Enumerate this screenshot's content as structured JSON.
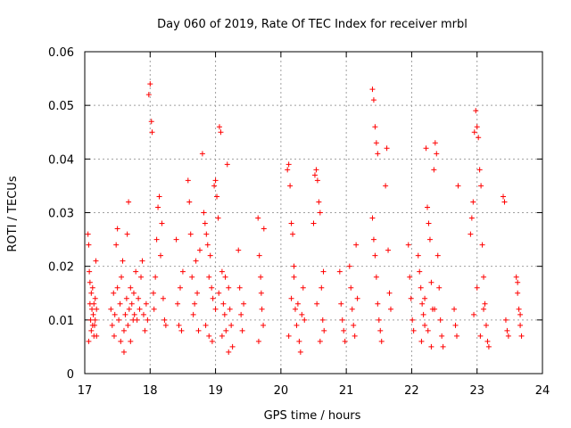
{
  "chart_data": {
    "type": "scatter",
    "title": "Day 060 of 2019, Rate Of TEC Index for receiver mrbl",
    "xlabel": "GPS time / hours",
    "ylabel": "ROTI / TECUs",
    "xlim": [
      17,
      24
    ],
    "ylim": [
      0,
      0.06
    ],
    "x_ticks": [
      17,
      18,
      19,
      20,
      21,
      22,
      23,
      24
    ],
    "x_tick_labels": [
      "17",
      "18",
      "19",
      "20",
      "21",
      "22",
      "23",
      "24"
    ],
    "y_ticks": [
      0,
      0.01,
      0.02,
      0.03,
      0.04,
      0.05,
      0.06
    ],
    "y_tick_labels": [
      "0",
      "0.01",
      "0.02",
      "0.03",
      "0.04",
      "0.05",
      "0.06"
    ],
    "grid": true,
    "marker": "+",
    "color": "#ff0000",
    "series": [
      {
        "name": "ROTI",
        "points": [
          [
            17.05,
            0.026
          ],
          [
            17.06,
            0.024
          ],
          [
            17.07,
            0.019
          ],
          [
            17.08,
            0.013
          ],
          [
            17.09,
            0.01
          ],
          [
            17.1,
            0.008
          ],
          [
            17.11,
            0.012
          ],
          [
            17.12,
            0.016
          ],
          [
            17.13,
            0.011
          ],
          [
            17.14,
            0.007
          ],
          [
            17.15,
            0.009
          ],
          [
            17.16,
            0.014
          ],
          [
            17.17,
            0.021
          ],
          [
            17.18,
            0.012
          ],
          [
            17.06,
            0.006
          ],
          [
            17.08,
            0.017
          ],
          [
            17.1,
            0.015
          ],
          [
            17.12,
            0.009
          ],
          [
            17.14,
            0.013
          ],
          [
            17.16,
            0.01
          ],
          [
            17.18,
            0.007
          ],
          [
            17.4,
            0.012
          ],
          [
            17.42,
            0.009
          ],
          [
            17.44,
            0.015
          ],
          [
            17.46,
            0.011
          ],
          [
            17.48,
            0.024
          ],
          [
            17.5,
            0.027
          ],
          [
            17.52,
            0.01
          ],
          [
            17.54,
            0.013
          ],
          [
            17.56,
            0.018
          ],
          [
            17.58,
            0.021
          ],
          [
            17.6,
            0.008
          ],
          [
            17.62,
            0.011
          ],
          [
            17.64,
            0.014
          ],
          [
            17.66,
            0.009
          ],
          [
            17.68,
            0.012
          ],
          [
            17.7,
            0.016
          ],
          [
            17.72,
            0.013
          ],
          [
            17.74,
            0.01
          ],
          [
            17.76,
            0.011
          ],
          [
            17.78,
            0.019
          ],
          [
            17.45,
            0.007
          ],
          [
            17.5,
            0.016
          ],
          [
            17.55,
            0.006
          ],
          [
            17.6,
            0.004
          ],
          [
            17.65,
            0.026
          ],
          [
            17.67,
            0.032
          ],
          [
            17.7,
            0.006
          ],
          [
            17.75,
            0.015
          ],
          [
            17.8,
            0.01
          ],
          [
            17.82,
            0.014
          ],
          [
            17.84,
            0.012
          ],
          [
            17.86,
            0.018
          ],
          [
            17.88,
            0.021
          ],
          [
            17.9,
            0.011
          ],
          [
            17.92,
            0.008
          ],
          [
            17.94,
            0.013
          ],
          [
            17.96,
            0.01
          ],
          [
            17.98,
            0.052
          ],
          [
            18.0,
            0.054
          ],
          [
            18.02,
            0.047
          ],
          [
            18.03,
            0.045
          ],
          [
            18.05,
            0.015
          ],
          [
            18.06,
            0.012
          ],
          [
            18.08,
            0.018
          ],
          [
            18.1,
            0.025
          ],
          [
            18.12,
            0.031
          ],
          [
            18.14,
            0.033
          ],
          [
            18.16,
            0.022
          ],
          [
            18.18,
            0.028
          ],
          [
            18.2,
            0.014
          ],
          [
            18.22,
            0.01
          ],
          [
            18.24,
            0.009
          ],
          [
            18.4,
            0.025
          ],
          [
            18.42,
            0.013
          ],
          [
            18.44,
            0.009
          ],
          [
            18.46,
            0.016
          ],
          [
            18.48,
            0.008
          ],
          [
            18.5,
            0.019
          ],
          [
            18.58,
            0.036
          ],
          [
            18.6,
            0.032
          ],
          [
            18.62,
            0.026
          ],
          [
            18.64,
            0.018
          ],
          [
            18.66,
            0.011
          ],
          [
            18.68,
            0.013
          ],
          [
            18.7,
            0.021
          ],
          [
            18.72,
            0.015
          ],
          [
            18.74,
            0.008
          ],
          [
            18.76,
            0.023
          ],
          [
            18.8,
            0.041
          ],
          [
            18.82,
            0.03
          ],
          [
            18.84,
            0.028
          ],
          [
            18.86,
            0.026
          ],
          [
            18.88,
            0.024
          ],
          [
            18.9,
            0.018
          ],
          [
            18.92,
            0.022
          ],
          [
            18.94,
            0.016
          ],
          [
            18.96,
            0.014
          ],
          [
            18.98,
            0.035
          ],
          [
            19.0,
            0.036
          ],
          [
            19.02,
            0.033
          ],
          [
            19.04,
            0.029
          ],
          [
            19.06,
            0.046
          ],
          [
            19.08,
            0.045
          ],
          [
            19.1,
            0.019
          ],
          [
            19.12,
            0.013
          ],
          [
            19.14,
            0.011
          ],
          [
            19.16,
            0.008
          ],
          [
            19.18,
            0.039
          ],
          [
            19.2,
            0.016
          ],
          [
            19.22,
            0.012
          ],
          [
            19.24,
            0.009
          ],
          [
            19.26,
            0.005
          ],
          [
            18.85,
            0.009
          ],
          [
            18.9,
            0.007
          ],
          [
            18.95,
            0.006
          ],
          [
            19.0,
            0.012
          ],
          [
            19.05,
            0.015
          ],
          [
            19.1,
            0.007
          ],
          [
            19.15,
            0.018
          ],
          [
            19.2,
            0.004
          ],
          [
            19.35,
            0.023
          ],
          [
            19.37,
            0.016
          ],
          [
            19.39,
            0.011
          ],
          [
            19.41,
            0.008
          ],
          [
            19.43,
            0.013
          ],
          [
            19.65,
            0.029
          ],
          [
            19.67,
            0.022
          ],
          [
            19.69,
            0.018
          ],
          [
            19.71,
            0.012
          ],
          [
            19.73,
            0.009
          ],
          [
            19.66,
            0.006
          ],
          [
            19.7,
            0.015
          ],
          [
            19.74,
            0.027
          ],
          [
            20.1,
            0.038
          ],
          [
            20.12,
            0.039
          ],
          [
            20.14,
            0.035
          ],
          [
            20.16,
            0.028
          ],
          [
            20.18,
            0.026
          ],
          [
            20.2,
            0.018
          ],
          [
            20.22,
            0.012
          ],
          [
            20.24,
            0.009
          ],
          [
            20.26,
            0.013
          ],
          [
            20.28,
            0.006
          ],
          [
            20.3,
            0.004
          ],
          [
            20.32,
            0.011
          ],
          [
            20.34,
            0.016
          ],
          [
            20.36,
            0.01
          ],
          [
            20.12,
            0.007
          ],
          [
            20.16,
            0.014
          ],
          [
            20.2,
            0.02
          ],
          [
            20.5,
            0.028
          ],
          [
            20.52,
            0.037
          ],
          [
            20.54,
            0.038
          ],
          [
            20.56,
            0.036
          ],
          [
            20.58,
            0.032
          ],
          [
            20.6,
            0.03
          ],
          [
            20.62,
            0.016
          ],
          [
            20.64,
            0.01
          ],
          [
            20.66,
            0.008
          ],
          [
            20.55,
            0.013
          ],
          [
            20.6,
            0.006
          ],
          [
            20.65,
            0.019
          ],
          [
            20.9,
            0.019
          ],
          [
            20.92,
            0.013
          ],
          [
            20.94,
            0.01
          ],
          [
            20.96,
            0.008
          ],
          [
            20.98,
            0.006
          ],
          [
            21.05,
            0.02
          ],
          [
            21.07,
            0.016
          ],
          [
            21.09,
            0.012
          ],
          [
            21.11,
            0.009
          ],
          [
            21.13,
            0.007
          ],
          [
            21.15,
            0.024
          ],
          [
            21.17,
            0.014
          ],
          [
            21.4,
            0.053
          ],
          [
            21.42,
            0.051
          ],
          [
            21.44,
            0.046
          ],
          [
            21.46,
            0.043
          ],
          [
            21.48,
            0.041
          ],
          [
            21.4,
            0.029
          ],
          [
            21.42,
            0.025
          ],
          [
            21.44,
            0.022
          ],
          [
            21.46,
            0.018
          ],
          [
            21.48,
            0.013
          ],
          [
            21.5,
            0.01
          ],
          [
            21.52,
            0.008
          ],
          [
            21.54,
            0.006
          ],
          [
            21.6,
            0.035
          ],
          [
            21.62,
            0.042
          ],
          [
            21.64,
            0.023
          ],
          [
            21.66,
            0.015
          ],
          [
            21.68,
            0.012
          ],
          [
            21.95,
            0.024
          ],
          [
            21.97,
            0.018
          ],
          [
            21.99,
            0.014
          ],
          [
            22.01,
            0.01
          ],
          [
            22.03,
            0.008
          ],
          [
            22.1,
            0.022
          ],
          [
            22.12,
            0.019
          ],
          [
            22.14,
            0.016
          ],
          [
            22.16,
            0.013
          ],
          [
            22.18,
            0.011
          ],
          [
            22.2,
            0.009
          ],
          [
            22.22,
            0.042
          ],
          [
            22.24,
            0.031
          ],
          [
            22.26,
            0.028
          ],
          [
            22.28,
            0.025
          ],
          [
            22.3,
            0.017
          ],
          [
            22.32,
            0.012
          ],
          [
            22.34,
            0.038
          ],
          [
            22.36,
            0.043
          ],
          [
            22.38,
            0.041
          ],
          [
            22.4,
            0.022
          ],
          [
            22.42,
            0.016
          ],
          [
            22.44,
            0.01
          ],
          [
            22.46,
            0.007
          ],
          [
            22.48,
            0.005
          ],
          [
            22.15,
            0.006
          ],
          [
            22.2,
            0.014
          ],
          [
            22.25,
            0.008
          ],
          [
            22.3,
            0.005
          ],
          [
            22.35,
            0.012
          ],
          [
            22.65,
            0.012
          ],
          [
            22.67,
            0.009
          ],
          [
            22.69,
            0.007
          ],
          [
            22.71,
            0.035
          ],
          [
            22.9,
            0.026
          ],
          [
            22.92,
            0.029
          ],
          [
            22.94,
            0.032
          ],
          [
            22.96,
            0.045
          ],
          [
            22.98,
            0.049
          ],
          [
            23.0,
            0.046
          ],
          [
            23.02,
            0.044
          ],
          [
            23.04,
            0.038
          ],
          [
            23.06,
            0.035
          ],
          [
            23.08,
            0.024
          ],
          [
            23.1,
            0.018
          ],
          [
            23.12,
            0.013
          ],
          [
            23.14,
            0.009
          ],
          [
            23.16,
            0.006
          ],
          [
            23.18,
            0.005
          ],
          [
            22.95,
            0.011
          ],
          [
            23.0,
            0.016
          ],
          [
            23.05,
            0.007
          ],
          [
            23.1,
            0.012
          ],
          [
            23.4,
            0.033
          ],
          [
            23.42,
            0.032
          ],
          [
            23.44,
            0.01
          ],
          [
            23.46,
            0.008
          ],
          [
            23.48,
            0.007
          ],
          [
            23.6,
            0.018
          ],
          [
            23.62,
            0.015
          ],
          [
            23.64,
            0.012
          ],
          [
            23.66,
            0.009
          ],
          [
            23.68,
            0.007
          ],
          [
            23.62,
            0.017
          ],
          [
            23.66,
            0.011
          ]
        ]
      }
    ]
  }
}
